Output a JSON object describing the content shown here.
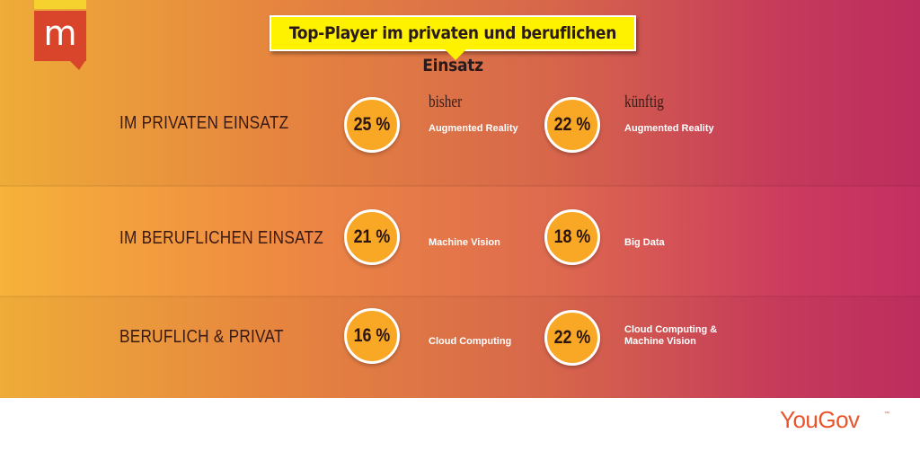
{
  "logo": {
    "letter": "m"
  },
  "title": "Top-Player im privaten und beruflichen Einsatz",
  "columns": {
    "before": "bisher",
    "future": "künftig"
  },
  "rows": [
    {
      "label": "IM PRIVATEN EINSATZ",
      "before": {
        "value": "25 %",
        "item": "Augmented Reality"
      },
      "future": {
        "value": "22 %",
        "item": "Augmented Reality"
      }
    },
    {
      "label": "IM BERUFLICHEN EINSATZ",
      "before": {
        "value": "21 %",
        "item": "Machine Vision"
      },
      "future": {
        "value": "18 %",
        "item": "Big Data"
      }
    },
    {
      "label": "BERUFLICH & PRIVAT",
      "before": {
        "value": "16 %",
        "item": "Cloud Computing"
      },
      "future": {
        "value": "22 %",
        "item": "Cloud Computing & Machine Vision"
      }
    }
  ],
  "brand": {
    "name": "YouGov",
    "mark": "™"
  },
  "colors": {
    "title_bg": "#fff200",
    "circle": "#f9a825",
    "brand": "#e8542c",
    "logo": "#d9452b"
  }
}
